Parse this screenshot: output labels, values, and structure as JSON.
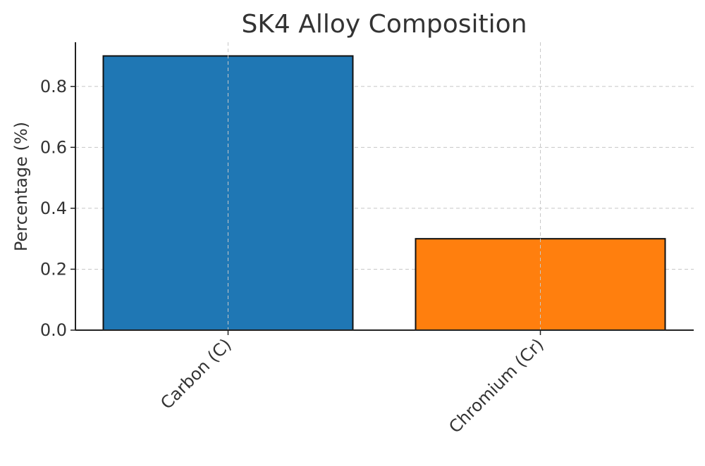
{
  "chart_data": {
    "type": "bar",
    "title": "SK4 Alloy Composition",
    "xlabel": "",
    "ylabel": "Percentage (%)",
    "categories": [
      "Carbon (C)",
      "Chromium (Cr)"
    ],
    "values": [
      0.9,
      0.3
    ],
    "colors": [
      "#1f77b4",
      "#ff7f0e"
    ],
    "ylim": [
      0,
      0.945
    ],
    "yticks": [
      0.0,
      0.2,
      0.4,
      0.6,
      0.8
    ],
    "ytick_labels": [
      "0.0",
      "0.2",
      "0.4",
      "0.6",
      "0.8"
    ],
    "grid": true,
    "legend": "none"
  }
}
